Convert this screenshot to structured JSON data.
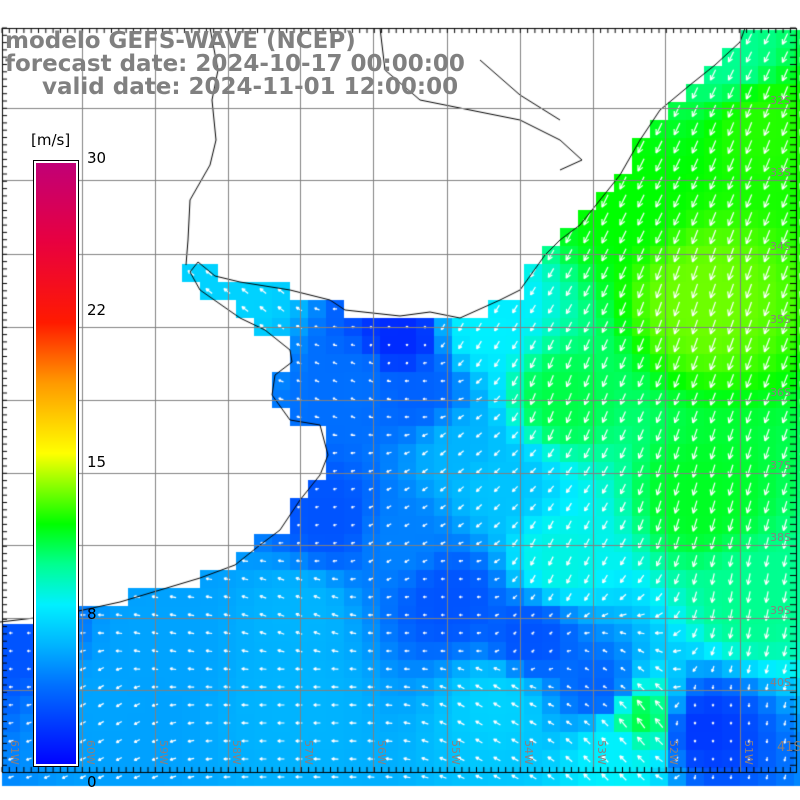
{
  "title": {
    "model": "modelo GEFS-WAVE (NCEP)",
    "forecast": "forecast date: 2024-10-17 00:00:00",
    "valid": "valid date: 2024-11-01 12:00:00"
  },
  "colorbar": {
    "unit": "[m/s]",
    "ticks": [
      "30",
      "22",
      "15",
      "8",
      "0"
    ],
    "stops": [
      {
        "value": 0,
        "color": "#0000ff"
      },
      {
        "value": 4,
        "color": "#0070ff"
      },
      {
        "value": 6,
        "color": "#00b4ff"
      },
      {
        "value": 8,
        "color": "#00f0ff"
      },
      {
        "value": 10,
        "color": "#00ff90"
      },
      {
        "value": 12,
        "color": "#00ff00"
      },
      {
        "value": 15.5,
        "color": "#ffff00"
      },
      {
        "value": 19,
        "color": "#ff9900"
      },
      {
        "value": 22,
        "color": "#ff1a00"
      },
      {
        "value": 26,
        "color": "#e80040"
      },
      {
        "value": 30,
        "color": "#c00078"
      }
    ]
  },
  "map": {
    "lat_labels": [
      "32S",
      "33S",
      "34S",
      "35S",
      "36S",
      "37S",
      "38S",
      "39S",
      "40S",
      "41S"
    ],
    "lon_labels": [
      "61W",
      "60W",
      "59W",
      "58W",
      "57W",
      "56W",
      "55W",
      "54W",
      "53W",
      "52W",
      "51W"
    ],
    "grid_color": "#808080",
    "coast_color": "#000000",
    "arrow_color": "#ffffff"
  }
}
